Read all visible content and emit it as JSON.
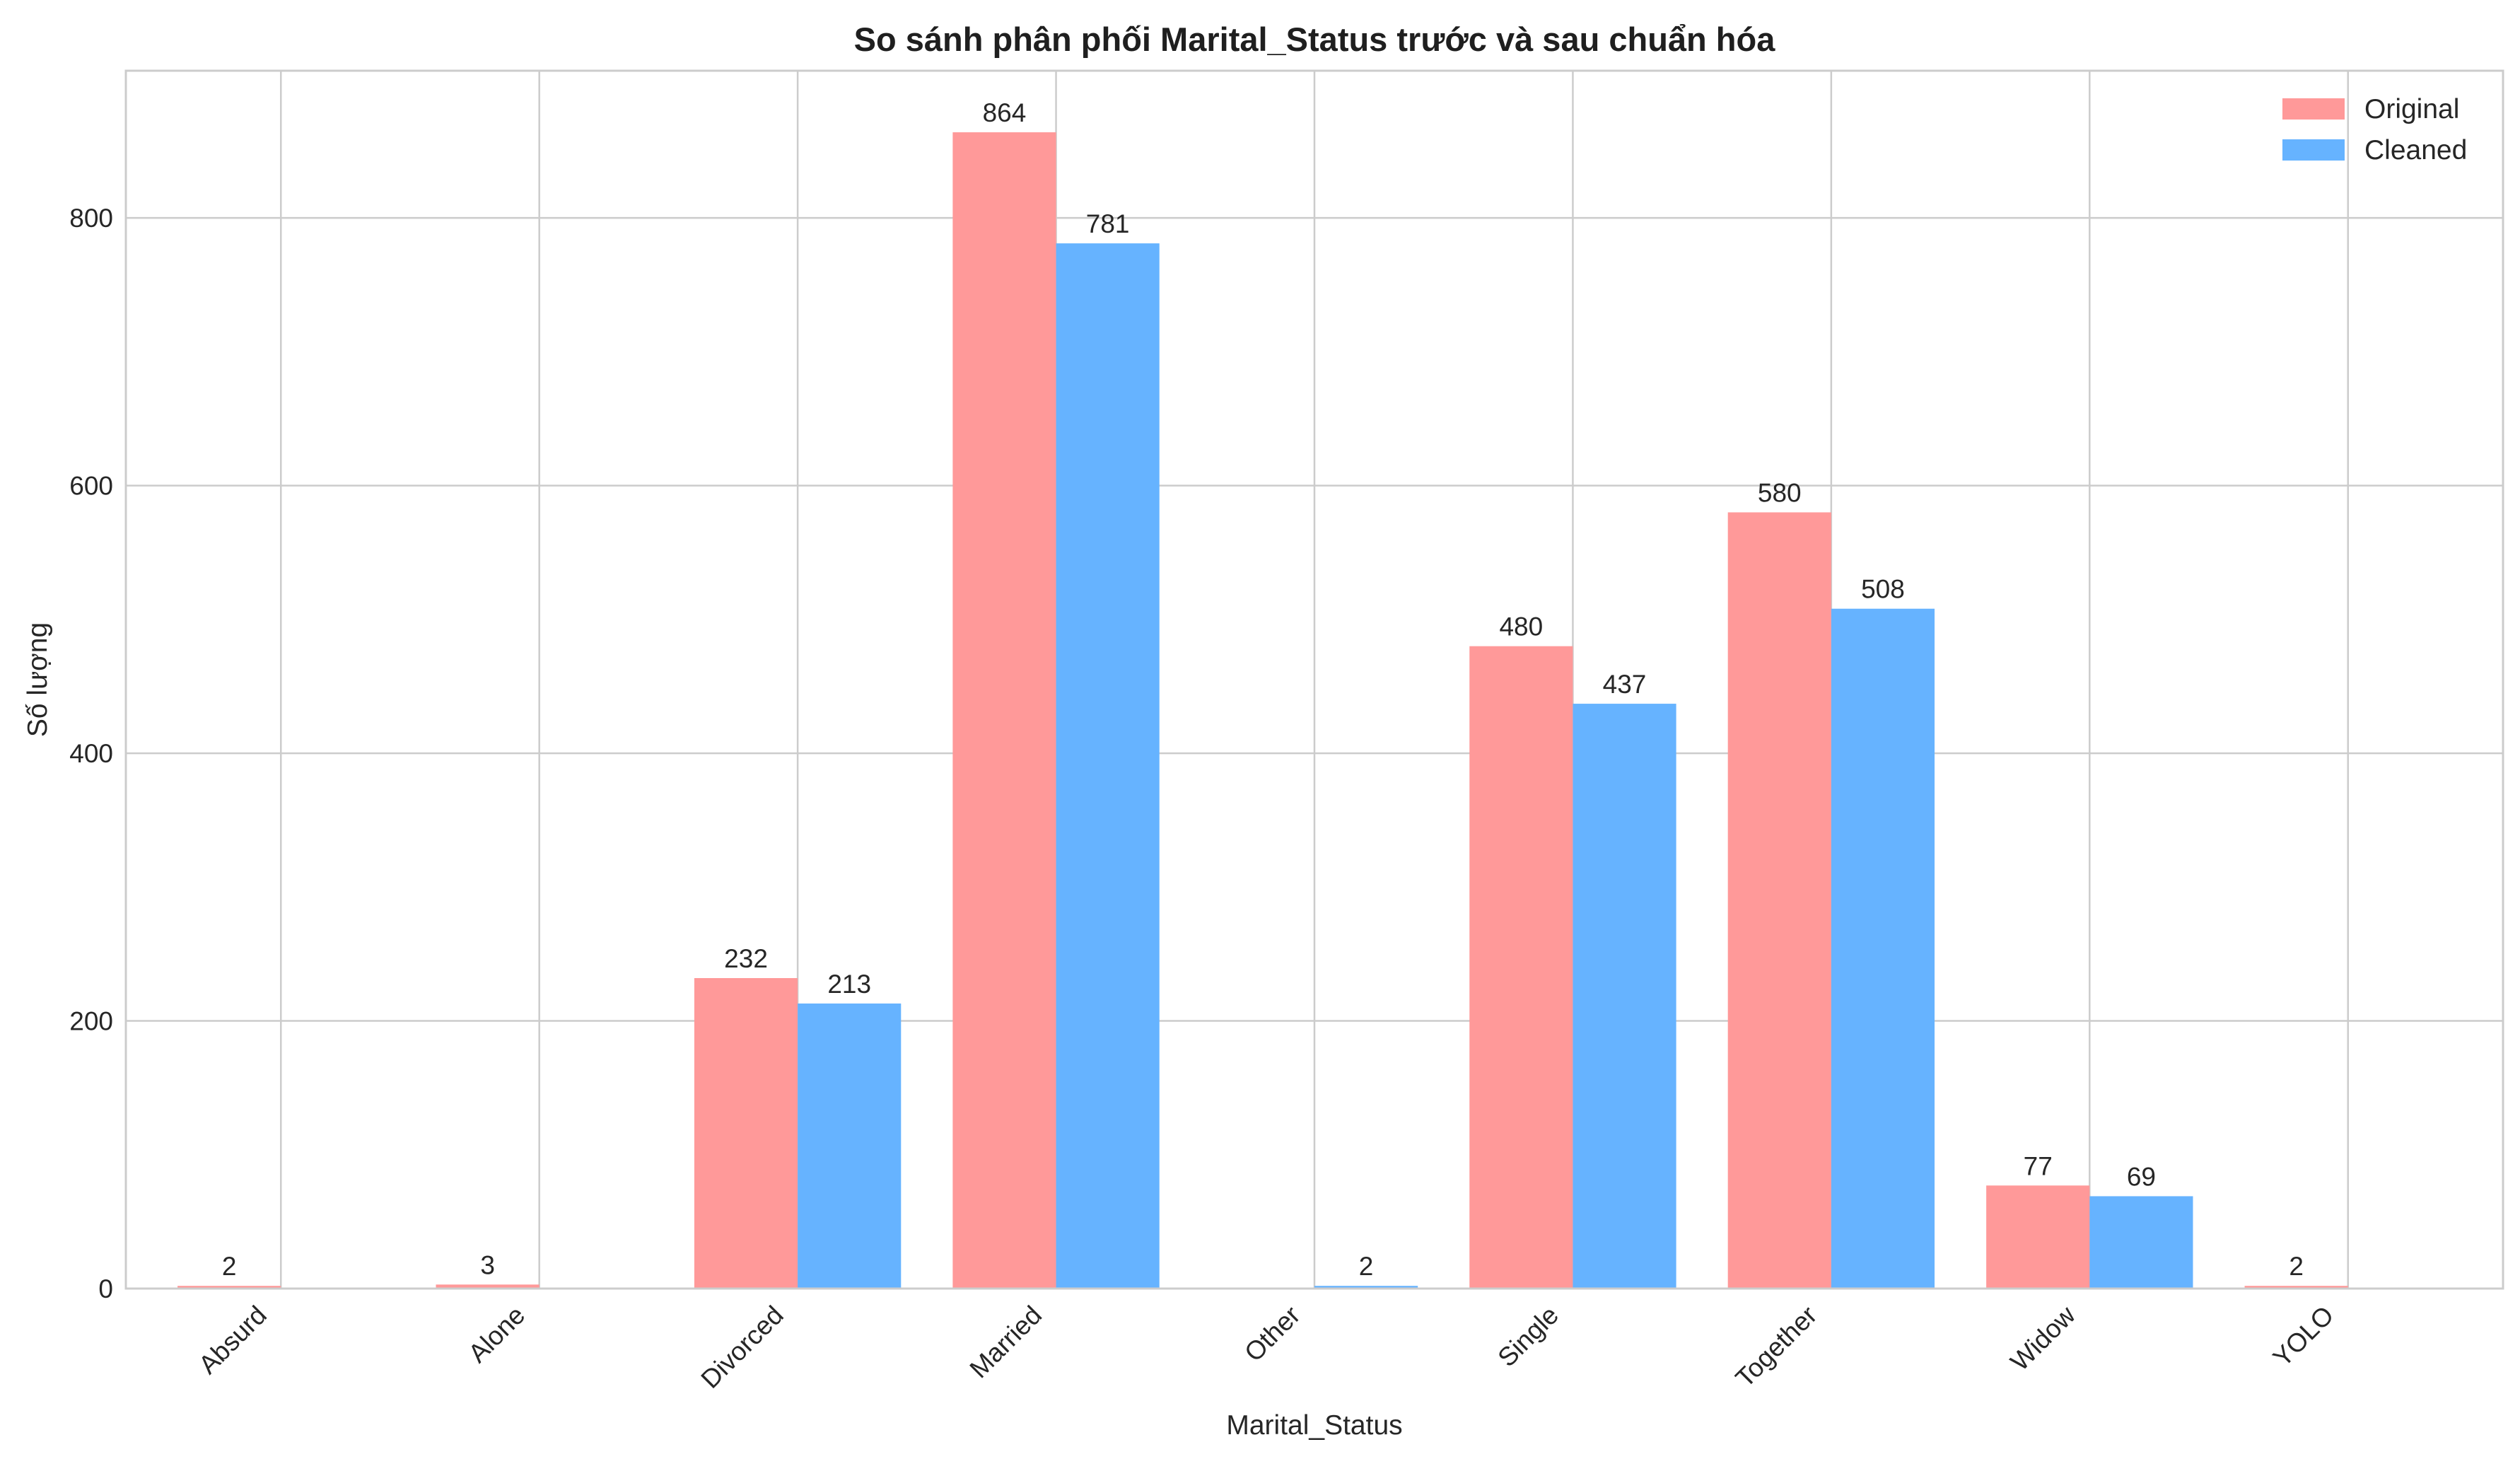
{
  "chart_data": {
    "type": "bar",
    "title": "So sánh phân phối Marital_Status trước và sau chuẩn hóa",
    "xlabel": "Marital_Status",
    "ylabel": "Số lượng",
    "categories": [
      "Absurd",
      "Alone",
      "Divorced",
      "Married",
      "Other",
      "Single",
      "Together",
      "Widow",
      "YOLO"
    ],
    "series": [
      {
        "name": "Original",
        "color": "#ff9999",
        "values": [
          2,
          3,
          232,
          864,
          0,
          480,
          580,
          77,
          2
        ],
        "labels": [
          "2",
          "3",
          "232",
          "864",
          "",
          "480",
          "580",
          "77",
          "2"
        ]
      },
      {
        "name": "Cleaned",
        "color": "#66b3ff",
        "values": [
          0,
          0,
          213,
          781,
          2,
          437,
          508,
          69,
          0
        ],
        "labels": [
          "",
          "",
          "213",
          "781",
          "2",
          "437",
          "508",
          "69",
          ""
        ]
      }
    ],
    "ylim": [
      0,
      910
    ],
    "yticks": [
      0,
      200,
      400,
      600,
      800
    ],
    "grid": true,
    "legend": "top-right"
  }
}
